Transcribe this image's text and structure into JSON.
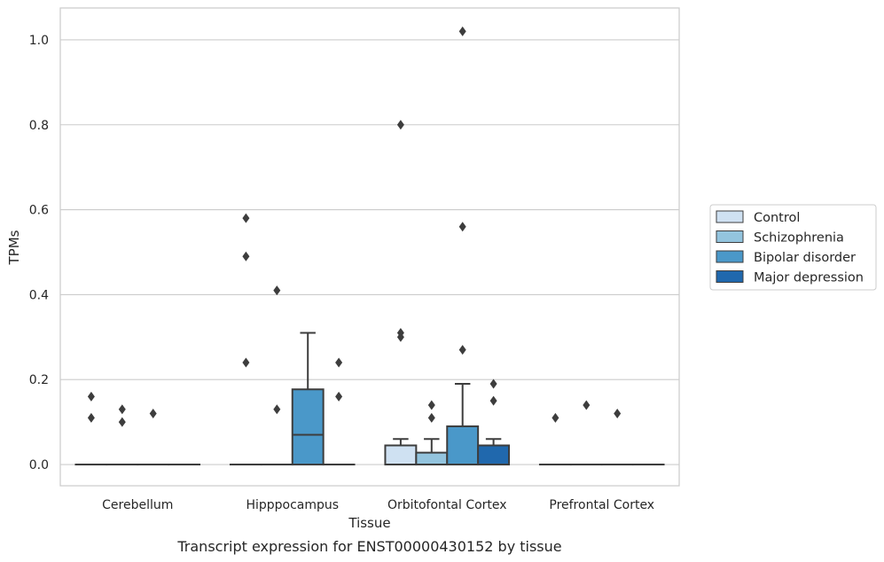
{
  "caption": "Transcript expression for ENST00000430152 by tissue",
  "chart_data": {
    "type": "box",
    "xlabel": "Tissue",
    "ylabel": "TPMs",
    "ylim": [
      -0.05,
      1.075
    ],
    "yticks": [
      "0.0",
      "0.2",
      "0.4",
      "0.6",
      "0.8",
      "1.0"
    ],
    "grid": "horizontal",
    "legend_position": "right",
    "categories": [
      "Cerebellum",
      "Hipppocampus",
      "Orbitofontal Cortex",
      "Prefrontal Cortex"
    ],
    "series": [
      {
        "name": "Control",
        "color": "#cfe1f2",
        "boxes": [
          {
            "q1": 0,
            "median": 0,
            "q3": 0,
            "whisker_low": 0,
            "whisker_high": 0,
            "outliers": [
              0.16,
              0.11
            ]
          },
          {
            "q1": 0,
            "median": 0,
            "q3": 0,
            "whisker_low": 0,
            "whisker_high": 0,
            "outliers": [
              0.58,
              0.49,
              0.24
            ]
          },
          {
            "q1": 0,
            "median": 0,
            "q3": 0.045,
            "whisker_low": 0,
            "whisker_high": 0.06,
            "outliers": [
              0.8,
              0.31,
              0.3
            ]
          },
          {
            "q1": 0,
            "median": 0,
            "q3": 0,
            "whisker_low": 0,
            "whisker_high": 0,
            "outliers": [
              0.11
            ]
          }
        ]
      },
      {
        "name": "Schizophrenia",
        "color": "#93c4de",
        "boxes": [
          {
            "q1": 0,
            "median": 0,
            "q3": 0,
            "whisker_low": 0,
            "whisker_high": 0,
            "outliers": [
              0.13,
              0.1
            ]
          },
          {
            "q1": 0,
            "median": 0,
            "q3": 0,
            "whisker_low": 0,
            "whisker_high": 0,
            "outliers": [
              0.41,
              0.13
            ]
          },
          {
            "q1": 0,
            "median": 0,
            "q3": 0.028,
            "whisker_low": 0,
            "whisker_high": 0.06,
            "outliers": [
              0.14,
              0.11
            ]
          },
          {
            "q1": 0,
            "median": 0,
            "q3": 0,
            "whisker_low": 0,
            "whisker_high": 0,
            "outliers": [
              0.14
            ]
          }
        ]
      },
      {
        "name": "Bipolar disorder",
        "color": "#4a98c9",
        "boxes": [
          {
            "q1": 0,
            "median": 0,
            "q3": 0,
            "whisker_low": 0,
            "whisker_high": 0,
            "outliers": [
              0.12
            ]
          },
          {
            "q1": 0,
            "median": 0.07,
            "q3": 0.177,
            "whisker_low": 0,
            "whisker_high": 0.31,
            "outliers": []
          },
          {
            "q1": 0,
            "median": 0,
            "q3": 0.09,
            "whisker_low": 0,
            "whisker_high": 0.19,
            "outliers": [
              1.02,
              0.56,
              0.27
            ]
          },
          {
            "q1": 0,
            "median": 0,
            "q3": 0,
            "whisker_low": 0,
            "whisker_high": 0,
            "outliers": [
              0.12
            ]
          }
        ]
      },
      {
        "name": "Major depression",
        "color": "#2068ad",
        "boxes": [
          {
            "q1": 0,
            "median": 0,
            "q3": 0,
            "whisker_low": 0,
            "whisker_high": 0,
            "outliers": []
          },
          {
            "q1": 0,
            "median": 0,
            "q3": 0,
            "whisker_low": 0,
            "whisker_high": 0,
            "outliers": [
              0.24,
              0.16
            ]
          },
          {
            "q1": 0,
            "median": 0,
            "q3": 0.045,
            "whisker_low": 0,
            "whisker_high": 0.06,
            "outliers": [
              0.19,
              0.15
            ]
          },
          {
            "q1": 0,
            "median": 0,
            "q3": 0,
            "whisker_low": 0,
            "whisker_high": 0,
            "outliers": []
          }
        ]
      }
    ]
  }
}
